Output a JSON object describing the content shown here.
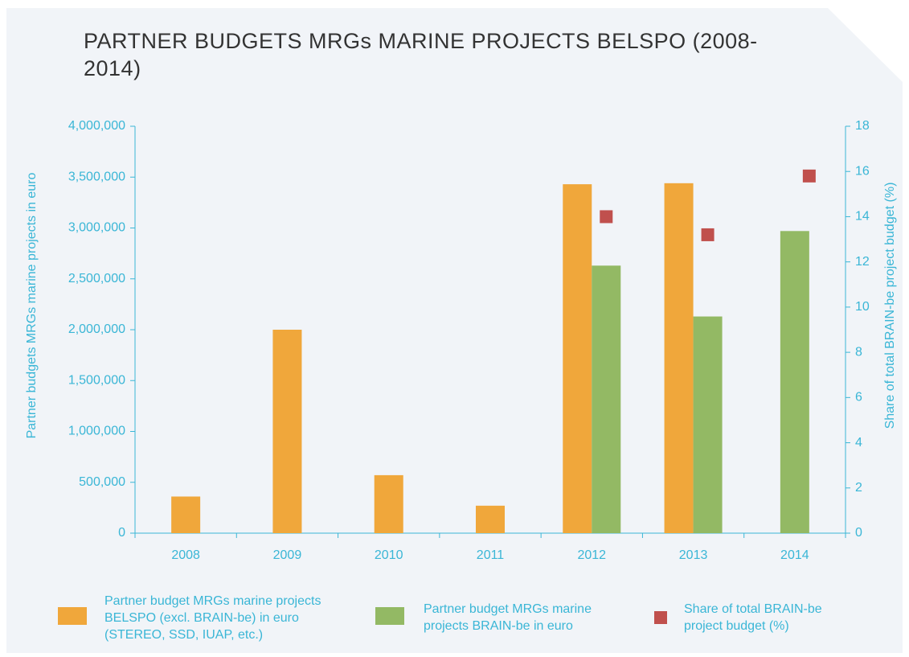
{
  "chart_data": {
    "type": "bar",
    "title": "PARTNER BUDGETS MRGs MARINE PROJECTS BELSPO (2008-2014)",
    "categories": [
      "2008",
      "2009",
      "2010",
      "2011",
      "2012",
      "2013",
      "2014"
    ],
    "series": [
      {
        "name": "Partner budget MRGs marine projects BELSPO (excl. BRAIN-be) in euro (STEREO, SSD, IUAP, etc.)",
        "color": "#f0a73b",
        "type": "bar",
        "values": [
          360000,
          2000000,
          570000,
          270000,
          3430000,
          3440000,
          null
        ]
      },
      {
        "name": "Partner budget MRGs marine projects BRAIN-be in euro",
        "color": "#93b964",
        "type": "bar",
        "values": [
          null,
          null,
          null,
          null,
          2630000,
          2130000,
          2970000
        ]
      },
      {
        "name": "Share of total BRAIN-be project budget (%)",
        "color": "#c0504d",
        "type": "scatter",
        "axis": "y2",
        "values": [
          null,
          null,
          null,
          null,
          14.0,
          13.2,
          15.8
        ]
      }
    ],
    "ylabel": "Partner budgets MRGs marine projects in euro",
    "y2label": "Share of total BRAIN-be project budget (%)",
    "ylim": [
      0,
      4000000
    ],
    "yticks": [
      0,
      {
        "value": 500000,
        "label": "500,000"
      },
      {
        "value": 1000000,
        "label": "1,000,000"
      },
      {
        "value": 1500000,
        "label": "1,500,000"
      },
      {
        "value": 2000000,
        "label": "2,000,000"
      },
      {
        "value": 2500000,
        "label": "2,500,000"
      },
      {
        "value": 3000000,
        "label": "3,000,000"
      },
      {
        "value": 3500000,
        "label": "3,500,000"
      },
      {
        "value": 4000000,
        "label": "4,000,000"
      }
    ],
    "y2lim": [
      0,
      18
    ],
    "y2ticks": [
      0,
      2,
      4,
      6,
      8,
      10,
      12,
      14,
      16,
      18
    ],
    "grid": false,
    "legend": "bottom"
  }
}
